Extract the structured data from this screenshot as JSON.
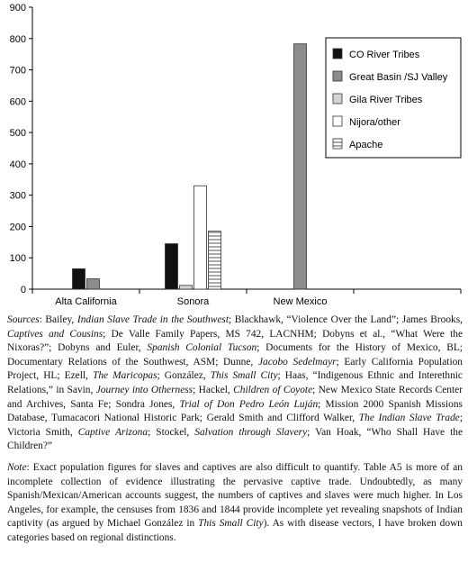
{
  "chart_data": {
    "type": "bar",
    "categories": [
      "Alta California",
      "Sonora",
      "New Mexico",
      ""
    ],
    "series": [
      {
        "name": "CO River Tribes",
        "values": [
          65,
          145,
          null,
          null
        ],
        "color": "#111111",
        "pattern": "solid"
      },
      {
        "name": "Great Basin /SJ Valley",
        "values": [
          33,
          null,
          783,
          null
        ],
        "color": "#8c8c8c",
        "pattern": "solid"
      },
      {
        "name": "Gila River Tribes",
        "values": [
          null,
          12,
          null,
          null
        ],
        "color": "#d4d4d4",
        "pattern": "solid"
      },
      {
        "name": "Nijora/other",
        "values": [
          null,
          330,
          null,
          null
        ],
        "color": "#ffffff",
        "pattern": "solid"
      },
      {
        "name": "Apache",
        "values": [
          null,
          185,
          null,
          null
        ],
        "color": "#ffffff",
        "pattern": "hlines"
      }
    ],
    "yticks": [
      0,
      100,
      200,
      300,
      400,
      500,
      600,
      700,
      800,
      900
    ],
    "ylim": [
      0,
      900
    ],
    "grid": false,
    "legend_position": "top-right"
  },
  "sources": {
    "lead": "Sources",
    "segments": [
      {
        "t": ": Bailey, "
      },
      {
        "t": "Indian Slave Trade in the Southwest",
        "i": true
      },
      {
        "t": "; Blackhawk, “Violence Over the Land”; James Brooks, "
      },
      {
        "t": "Captives and Cousins",
        "i": true
      },
      {
        "t": "; De Valle Family Papers, MS 742, LACNHM; Dobyns et al., “What Were the Nixoras?”; Dobyns and Euler, "
      },
      {
        "t": "Spanish Colonial Tucson",
        "i": true
      },
      {
        "t": "; Documents for the History of Mexico, BL; Documentary Relations of the Southwest, ASM; Dunne, "
      },
      {
        "t": "Jacobo Sedelmayr",
        "i": true
      },
      {
        "t": "; Early California Population Project, HL; Ezell, "
      },
      {
        "t": "The Maricopas",
        "i": true
      },
      {
        "t": "; González, "
      },
      {
        "t": "This Small City",
        "i": true
      },
      {
        "t": "; Haas, “Indigenous Ethnic and Interethnic Relations,” in Savin, "
      },
      {
        "t": "Journey into Otherness",
        "i": true
      },
      {
        "t": "; Hackel, "
      },
      {
        "t": "Children of Coyote",
        "i": true
      },
      {
        "t": "; New Mexico State Records Center and Archives, Santa Fe; Sondra Jones, "
      },
      {
        "t": "Trial of Don Pedro León Luján",
        "i": true
      },
      {
        "t": "; Mission 2000 Spanish Missions Database, Tumacacori National Historic Park; Gerald Smith and Clifford Walker, "
      },
      {
        "t": "The Indian Slave Trade",
        "i": true
      },
      {
        "t": "; Victoria Smith, "
      },
      {
        "t": "Captive Arizona",
        "i": true
      },
      {
        "t": "; Stockel, "
      },
      {
        "t": "Salvation through Slavery",
        "i": true
      },
      {
        "t": "; Van Hoak, “Who Shall Have the Children?”"
      }
    ]
  },
  "note": {
    "lead": "Note",
    "segments": [
      {
        "t": ": Exact population figures for slaves and captives are also difficult to quantify. Table A5 is more of an incomplete collection of evidence illustrating the pervasive captive trade. Undoubtedly, as many Spanish/Mexican/American accounts suggest, the numbers of captives and slaves were much higher. In Los Angeles, for example, the censuses from 1836 and 1844 provide incomplete yet revealing snapshots of Indian captivity (as argued by Michael González in "
      },
      {
        "t": "This Small City",
        "i": true
      },
      {
        "t": "). As with disease vectors, I have broken down categories based on regional distinctions."
      }
    ]
  }
}
